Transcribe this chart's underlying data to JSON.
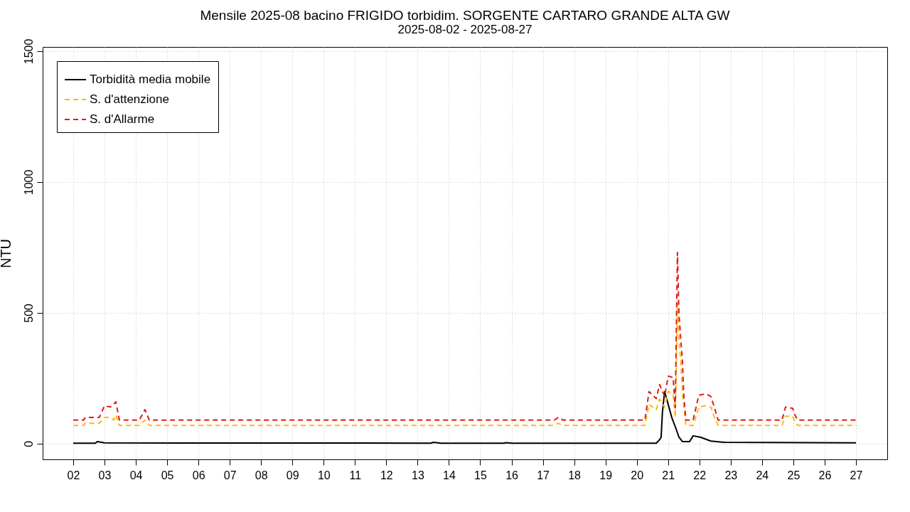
{
  "chart_data": {
    "type": "line",
    "title": "Mensile 2025-08 bacino FRIGIDO torbidim. SORGENTE CARTARO GRANDE ALTA GW",
    "subtitle": "2025-08-02 - 2025-08-27",
    "ylabel": "NTU",
    "xlim": [
      "2025-08-01T00:35",
      "2025-08-28T00:00"
    ],
    "ylim": [
      -60,
      1516
    ],
    "yticks": [
      0,
      500,
      1000,
      1500
    ],
    "xticks": [
      {
        "value": "2025-08-02",
        "label": "02"
      },
      {
        "value": "2025-08-03",
        "label": "03"
      },
      {
        "value": "2025-08-04",
        "label": "04"
      },
      {
        "value": "2025-08-05",
        "label": "05"
      },
      {
        "value": "2025-08-06",
        "label": "06"
      },
      {
        "value": "2025-08-07",
        "label": "07"
      },
      {
        "value": "2025-08-08",
        "label": "08"
      },
      {
        "value": "2025-08-09",
        "label": "09"
      },
      {
        "value": "2025-08-10",
        "label": "10"
      },
      {
        "value": "2025-08-11",
        "label": "11"
      },
      {
        "value": "2025-08-12",
        "label": "12"
      },
      {
        "value": "2025-08-13",
        "label": "13"
      },
      {
        "value": "2025-08-14",
        "label": "14"
      },
      {
        "value": "2025-08-15",
        "label": "15"
      },
      {
        "value": "2025-08-16",
        "label": "16"
      },
      {
        "value": "2025-08-17",
        "label": "17"
      },
      {
        "value": "2025-08-18",
        "label": "18"
      },
      {
        "value": "2025-08-19",
        "label": "19"
      },
      {
        "value": "2025-08-20",
        "label": "20"
      },
      {
        "value": "2025-08-21",
        "label": "21"
      },
      {
        "value": "2025-08-22",
        "label": "22"
      },
      {
        "value": "2025-08-23",
        "label": "23"
      },
      {
        "value": "2025-08-24",
        "label": "24"
      },
      {
        "value": "2025-08-25",
        "label": "25"
      },
      {
        "value": "2025-08-26",
        "label": "26"
      },
      {
        "value": "2025-08-27",
        "label": "27"
      }
    ],
    "grid": true,
    "legend": "top left",
    "series": [
      {
        "name": "Torbidità media mobile",
        "color": "#000000",
        "line_style": "solid",
        "x": [
          "2025-08-02T00:00",
          "2025-08-02T17:00",
          "2025-08-02T18:30",
          "2025-08-03T00:00",
          "2025-08-13T10:00",
          "2025-08-13T12:00",
          "2025-08-13T18:00",
          "2025-08-15T18:00",
          "2025-08-15T20:00",
          "2025-08-16T00:00",
          "2025-08-20T14:55",
          "2025-08-20T17:30",
          "2025-08-20T18:40",
          "2025-08-20T19:40",
          "2025-08-20T21:20",
          "2025-08-21T00:05",
          "2025-08-21T02:50",
          "2025-08-21T05:30",
          "2025-08-21T08:20",
          "2025-08-21T11:00",
          "2025-08-21T16:30",
          "2025-08-21T19:10",
          "2025-08-22T00:40",
          "2025-08-22T08:50",
          "2025-08-22T19:40",
          "2025-08-27T00:00"
        ],
        "values": [
          2,
          2,
          8,
          3,
          2,
          5,
          2,
          2,
          4,
          2,
          2,
          15,
          25,
          120,
          199,
          150,
          100,
          65,
          25,
          8,
          8,
          30,
          25,
          10,
          5,
          3
        ]
      },
      {
        "name": "S. d'attenzione",
        "color": "#ffb90f",
        "line_style": "dashed",
        "x": [
          "2025-08-02T00:00",
          "2025-08-02T08:00",
          "2025-08-02T09:15",
          "2025-08-02T20:00",
          "2025-08-03T00:00",
          "2025-08-03T04:20",
          "2025-08-03T07:00",
          "2025-08-03T08:40",
          "2025-08-03T11:25",
          "2025-08-04T02:40",
          "2025-08-04T07:00",
          "2025-08-04T10:20",
          "2025-08-17T08:55",
          "2025-08-17T11:40",
          "2025-08-17T15:30",
          "2025-08-20T06:15",
          "2025-08-20T09:25",
          "2025-08-20T14:55",
          "2025-08-20T17:30",
          "2025-08-20T21:20",
          "2025-08-21T00:05",
          "2025-08-21T03:50",
          "2025-08-21T05:30",
          "2025-08-21T07:10",
          "2025-08-21T08:20",
          "2025-08-21T09:55",
          "2025-08-21T11:00",
          "2025-08-21T12:05",
          "2025-08-21T13:40",
          "2025-08-21T19:10",
          "2025-08-21T23:35",
          "2025-08-22T05:00",
          "2025-08-22T08:50",
          "2025-08-22T11:35",
          "2025-08-22T14:20",
          "2025-08-24T15:20",
          "2025-08-24T18:00",
          "2025-08-24T23:30",
          "2025-08-25T01:10",
          "2025-08-25T03:25",
          "2025-08-27T00:30"
        ],
        "values": [
          70,
          70,
          78,
          78,
          100,
          100,
          90,
          110,
          70,
          70,
          90,
          70,
          70,
          78,
          70,
          70,
          150,
          130,
          170,
          140,
          200,
          190,
          100,
          540,
          400,
          300,
          200,
          140,
          70,
          70,
          140,
          145,
          140,
          100,
          70,
          70,
          105,
          105,
          85,
          70,
          70
        ]
      },
      {
        "name": "S. d'Allarme",
        "color": "#e31a1c",
        "line_style": "dashed",
        "x": [
          "2025-08-02T00:00",
          "2025-08-02T08:00",
          "2025-08-02T09:15",
          "2025-08-02T20:00",
          "2025-08-03T00:00",
          "2025-08-03T04:20",
          "2025-08-03T07:00",
          "2025-08-03T08:40",
          "2025-08-03T11:25",
          "2025-08-04T02:40",
          "2025-08-04T07:00",
          "2025-08-04T10:20",
          "2025-08-17T08:55",
          "2025-08-17T11:40",
          "2025-08-17T15:30",
          "2025-08-20T06:15",
          "2025-08-20T09:25",
          "2025-08-20T14:55",
          "2025-08-20T17:30",
          "2025-08-20T21:20",
          "2025-08-21T00:05",
          "2025-08-21T03:50",
          "2025-08-21T05:30",
          "2025-08-21T07:10",
          "2025-08-21T08:20",
          "2025-08-21T09:55",
          "2025-08-21T11:00",
          "2025-08-21T12:05",
          "2025-08-21T13:40",
          "2025-08-21T19:10",
          "2025-08-21T23:35",
          "2025-08-22T05:00",
          "2025-08-22T08:50",
          "2025-08-22T11:35",
          "2025-08-22T14:20",
          "2025-08-24T15:20",
          "2025-08-24T18:00",
          "2025-08-24T23:30",
          "2025-08-25T01:10",
          "2025-08-25T03:25",
          "2025-08-27T00:30"
        ],
        "values": [
          90,
          90,
          100,
          100,
          145,
          140,
          150,
          160,
          90,
          90,
          130,
          90,
          90,
          100,
          90,
          90,
          199,
          172,
          226,
          180,
          258,
          253,
          137,
          731,
          495,
          387,
          315,
          180,
          90,
          90,
          185,
          191,
          180,
          137,
          90,
          90,
          140,
          135,
          110,
          90,
          90
        ]
      }
    ]
  }
}
